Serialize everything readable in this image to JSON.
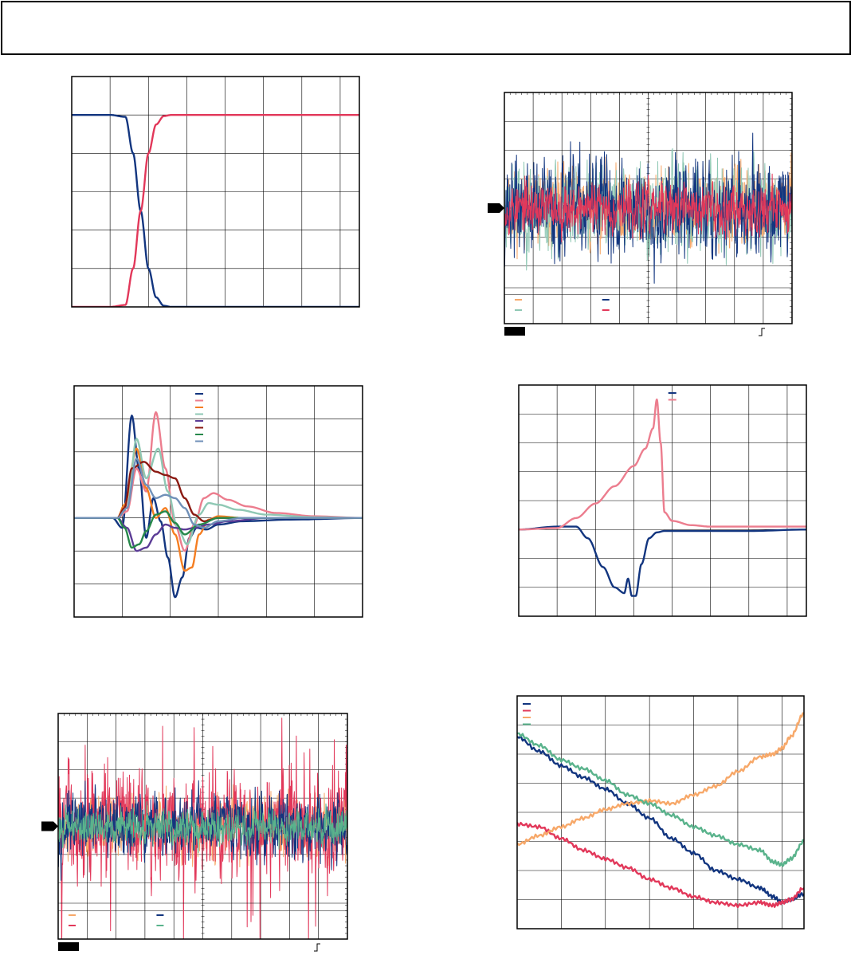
{
  "colors": {
    "blue": "#12357f",
    "pink_red": "#e2385a",
    "light_pink": "#ec7d8e",
    "orange": "#f57e22",
    "light_orange": "#f7a869",
    "light_teal": "#8fc8b4",
    "teal": "#5ab38c",
    "purple": "#5b3c96",
    "dark_red": "#8b1a12",
    "dark_green": "#26884a",
    "steel_blue": "#7090b8",
    "grid": "#000000"
  },
  "chart_data": [
    {
      "id": "chart1",
      "type": "line",
      "title": "",
      "xlabel": "",
      "ylabel": "",
      "xlim": [
        0,
        7.5
      ],
      "ylim": [
        0,
        6
      ],
      "grid": true,
      "legend": "none",
      "series": [
        {
          "x": [
            0,
            1.0,
            1.4,
            1.6,
            1.8,
            2.0,
            2.2,
            2.4,
            2.6,
            3.0,
            7.5
          ],
          "y": [
            5,
            5,
            4.95,
            4.0,
            2.5,
            1.0,
            0.25,
            0.03,
            0,
            0,
            0
          ],
          "color_key": "blue"
        },
        {
          "x": [
            0,
            1.0,
            1.4,
            1.6,
            1.8,
            2.0,
            2.2,
            2.4,
            2.6,
            3.0,
            7.5
          ],
          "y": [
            0,
            0,
            0.05,
            1.0,
            2.5,
            4.0,
            4.75,
            4.97,
            5,
            5,
            5
          ],
          "color_key": "pink_red"
        }
      ]
    },
    {
      "id": "chart2",
      "type": "line",
      "title": "",
      "xlabel": "",
      "ylabel": "",
      "xlim": [
        0,
        10
      ],
      "ylim": [
        -4,
        4
      ],
      "grid": true,
      "legend": "none",
      "marker_left": true,
      "footer_box": true,
      "series": [
        {
          "color_key": "light_orange",
          "noise_amp": 1.15,
          "seed": 11,
          "stroke_width": 1
        },
        {
          "color_key": "light_teal",
          "noise_amp": 1.35,
          "seed": 23,
          "stroke_width": 1
        },
        {
          "color_key": "blue",
          "noise_amp": 1.5,
          "seed": 37,
          "stroke_width": 1
        },
        {
          "color_key": "pink_red",
          "noise_amp": 0.75,
          "seed": 53,
          "stroke_width": 1
        }
      ]
    },
    {
      "id": "chart3",
      "type": "line",
      "title": "",
      "xlabel": "",
      "ylabel": "",
      "xlim": [
        0,
        6
      ],
      "ylim": [
        -3,
        4
      ],
      "grid": true,
      "legend": "top-right",
      "series": [
        {
          "color_key": "blue",
          "x": [
            0,
            0.8,
            1.0,
            1.2,
            1.35,
            1.5,
            1.65,
            1.8,
            1.95,
            2.1,
            2.25,
            2.4,
            2.55,
            2.75,
            3.0,
            3.5,
            4.5,
            6
          ],
          "y": [
            0,
            0,
            -0.3,
            3.1,
            1.5,
            -0.6,
            0.6,
            -0.1,
            -1.2,
            -2.4,
            -1.8,
            -0.6,
            -0.3,
            -0.35,
            -0.2,
            -0.1,
            -0.05,
            0
          ]
        },
        {
          "color_key": "light_pink",
          "x": [
            0,
            0.9,
            1.1,
            1.3,
            1.5,
            1.7,
            1.9,
            2.1,
            2.3,
            2.5,
            2.7,
            2.9,
            3.2,
            3.6,
            4.2,
            5,
            6
          ],
          "y": [
            0,
            0,
            0.2,
            1.5,
            0.8,
            3.2,
            1.5,
            -0.2,
            -1.0,
            -0.2,
            0.6,
            0.75,
            0.55,
            0.35,
            0.15,
            0.05,
            0
          ]
        },
        {
          "color_key": "orange",
          "x": [
            0,
            0.9,
            1.05,
            1.3,
            1.5,
            1.7,
            1.9,
            2.1,
            2.3,
            2.45,
            2.6,
            2.8,
            3.0,
            3.5,
            6
          ],
          "y": [
            0,
            0,
            0.4,
            2.1,
            0.9,
            0,
            0.3,
            -0.5,
            -1.6,
            -1.5,
            -0.5,
            -0.05,
            0.05,
            0,
            0
          ]
        },
        {
          "color_key": "light_teal",
          "x": [
            0,
            0.9,
            1.1,
            1.3,
            1.5,
            1.75,
            1.95,
            2.15,
            2.35,
            2.6,
            2.8,
            3.0,
            3.4,
            4,
            5,
            6
          ],
          "y": [
            0,
            0,
            0.3,
            2.4,
            1.2,
            2.1,
            0.8,
            -0.3,
            -0.8,
            0.1,
            0.45,
            0.4,
            0.25,
            0.1,
            0.02,
            0
          ]
        },
        {
          "color_key": "purple",
          "x": [
            0,
            0.9,
            1.1,
            1.3,
            1.5,
            1.7,
            1.9,
            2.1,
            2.3,
            2.5,
            2.8,
            3.2,
            4,
            6
          ],
          "y": [
            0,
            0,
            -0.3,
            -1.0,
            -0.9,
            -0.5,
            -0.2,
            -0.3,
            -0.35,
            -0.3,
            -0.2,
            -0.1,
            0,
            0
          ]
        },
        {
          "color_key": "dark_red",
          "x": [
            0,
            0.9,
            1.05,
            1.2,
            1.45,
            1.7,
            1.9,
            2.1,
            2.3,
            2.5,
            2.7,
            3.0,
            3.5,
            6
          ],
          "y": [
            0,
            0,
            0.3,
            1.5,
            1.7,
            1.4,
            1.3,
            1.2,
            0.6,
            0.1,
            -0.1,
            0,
            0,
            0
          ]
        },
        {
          "color_key": "dark_green",
          "x": [
            0,
            0.9,
            1.05,
            1.2,
            1.35,
            1.5,
            1.7,
            1.9,
            2.1,
            2.3,
            2.6,
            3.0,
            3.5,
            6
          ],
          "y": [
            0,
            0,
            -0.3,
            -0.9,
            -0.8,
            -0.4,
            0.1,
            0.2,
            -0.15,
            -0.5,
            -0.2,
            0,
            0,
            0
          ]
        },
        {
          "color_key": "steel_blue",
          "x": [
            0,
            0.9,
            1.1,
            1.3,
            1.5,
            1.7,
            1.9,
            2.1,
            2.3,
            2.5,
            2.7,
            3.0,
            3.5,
            6
          ],
          "y": [
            0,
            0,
            0.3,
            1.8,
            1.0,
            0.6,
            0.7,
            0.6,
            0.3,
            -0.2,
            -0.3,
            -0.1,
            0,
            0
          ]
        }
      ]
    },
    {
      "id": "chart4",
      "type": "line",
      "title": "",
      "xlabel": "",
      "ylabel": "",
      "xlim": [
        0,
        7.5
      ],
      "ylim": [
        -3,
        5
      ],
      "grid": true,
      "legend": "top-right",
      "series": [
        {
          "color_key": "blue",
          "x": [
            0,
            1.0,
            1.5,
            1.8,
            2.2,
            2.5,
            2.75,
            2.85,
            2.95,
            3.05,
            3.2,
            3.4,
            3.6,
            3.8,
            4.0,
            5,
            6,
            7.5
          ],
          "y": [
            0,
            0.1,
            0.1,
            -0.3,
            -1.3,
            -2.0,
            -2.2,
            -1.7,
            -2.3,
            -2.3,
            -1.2,
            -0.3,
            -0.1,
            -0.05,
            -0.05,
            -0.05,
            -0.05,
            0
          ]
        },
        {
          "color_key": "light_pink",
          "x": [
            0,
            1.0,
            1.5,
            2.0,
            2.5,
            3.0,
            3.3,
            3.5,
            3.6,
            3.7,
            3.8,
            4.0,
            4.5,
            5,
            6,
            7.5
          ],
          "y": [
            0,
            0.05,
            0.4,
            0.9,
            1.5,
            2.2,
            2.8,
            3.5,
            4.5,
            3.0,
            0.6,
            0.3,
            0.15,
            0.1,
            0.1,
            0.1
          ]
        }
      ]
    },
    {
      "id": "chart5",
      "type": "line",
      "title": "",
      "xlabel": "",
      "ylabel": "",
      "xlim": [
        0,
        10
      ],
      "ylim": [
        -4,
        4
      ],
      "grid": true,
      "legend": "none",
      "marker_left": true,
      "footer_box": true,
      "series": [
        {
          "color_key": "light_orange",
          "noise_amp": 0.95,
          "seed": 71,
          "stroke_width": 1,
          "spiky": false
        },
        {
          "color_key": "pink_red",
          "noise_amp": 1.6,
          "seed": 83,
          "stroke_width": 1,
          "spiky": true
        },
        {
          "color_key": "blue",
          "noise_amp": 1.0,
          "seed": 97,
          "stroke_width": 1,
          "spiky": false
        },
        {
          "color_key": "teal",
          "noise_amp": 0.55,
          "seed": 101,
          "stroke_width": 1,
          "spiky": false
        }
      ]
    },
    {
      "id": "chart6",
      "type": "line",
      "title": "",
      "xlabel": "",
      "ylabel": "",
      "xlim": [
        0,
        6.5
      ],
      "ylim": [
        0,
        8
      ],
      "grid": true,
      "legend": "top-left",
      "series": [
        {
          "color_key": "blue",
          "x": [
            0,
            0.5,
            1,
            1.5,
            2,
            2.5,
            3,
            3.5,
            4,
            4.5,
            5,
            5.5,
            5.8,
            6.0,
            6.2,
            6.5
          ],
          "y": [
            6.6,
            6.1,
            5.6,
            5.2,
            4.8,
            4.3,
            3.8,
            3.1,
            2.6,
            2.0,
            1.7,
            1.4,
            1.1,
            0.9,
            1.0,
            1.2
          ]
        },
        {
          "color_key": "pink_red",
          "x": [
            0,
            0.5,
            1,
            1.5,
            2,
            2.5,
            3,
            3.5,
            4,
            4.5,
            5,
            5.5,
            5.8,
            6.0,
            6.2,
            6.5
          ],
          "y": [
            3.6,
            3.5,
            3.1,
            2.7,
            2.4,
            2.1,
            1.7,
            1.4,
            1.1,
            0.9,
            0.8,
            0.9,
            0.8,
            0.9,
            1.0,
            1.4
          ]
        },
        {
          "color_key": "light_orange",
          "x": [
            0,
            0.5,
            1,
            1.5,
            2,
            2.5,
            3,
            3.5,
            4,
            4.5,
            5,
            5.5,
            5.8,
            6.0,
            6.2,
            6.5
          ],
          "y": [
            2.9,
            3.2,
            3.5,
            3.8,
            4.1,
            4.3,
            4.4,
            4.3,
            4.6,
            4.9,
            5.4,
            5.9,
            6.0,
            6.2,
            6.6,
            7.4
          ]
        },
        {
          "color_key": "teal",
          "x": [
            0,
            0.5,
            1,
            1.5,
            2,
            2.5,
            3,
            3.5,
            4,
            4.5,
            5,
            5.5,
            5.8,
            6.0,
            6.2,
            6.5
          ],
          "y": [
            6.7,
            6.3,
            5.8,
            5.5,
            5.1,
            4.6,
            4.3,
            3.9,
            3.5,
            3.2,
            2.9,
            2.7,
            2.3,
            2.2,
            2.4,
            3.0
          ]
        }
      ]
    }
  ]
}
